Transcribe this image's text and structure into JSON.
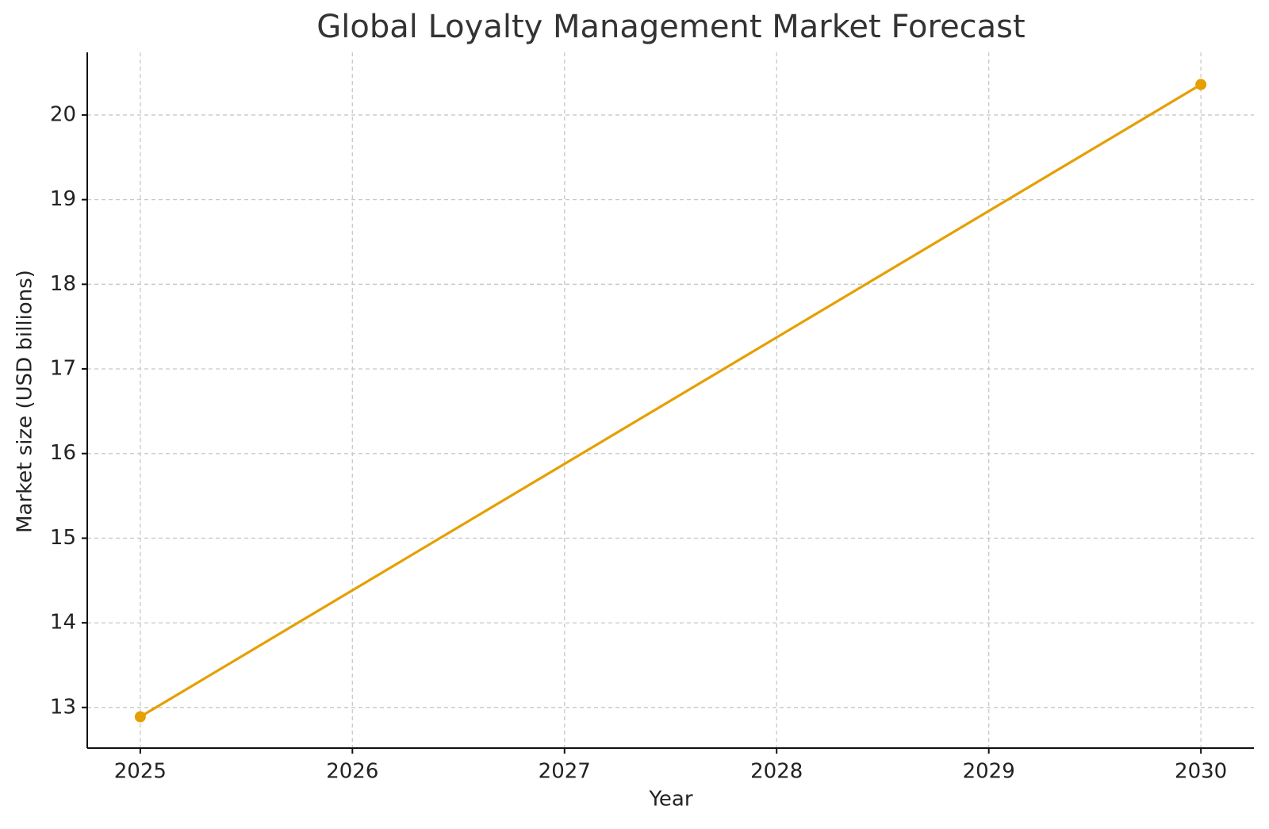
{
  "chart_data": {
    "type": "line",
    "title": "Global Loyalty Management Market Forecast",
    "x_label": "Year",
    "y_label": "Market size (USD billions)",
    "x": [
      2025,
      2030
    ],
    "series": [
      {
        "name": "Market size",
        "color": "#e69f00",
        "values": [
          12.89,
          20.36
        ]
      }
    ],
    "xlim": [
      2024.75,
      2030.25
    ],
    "xticks": [
      2025,
      2026,
      2027,
      2028,
      2029,
      2030
    ],
    "ylim": [
      12.52,
      20.74
    ],
    "yticks": [
      13,
      14,
      15,
      16,
      17,
      18,
      19,
      20
    ],
    "grid": true
  }
}
